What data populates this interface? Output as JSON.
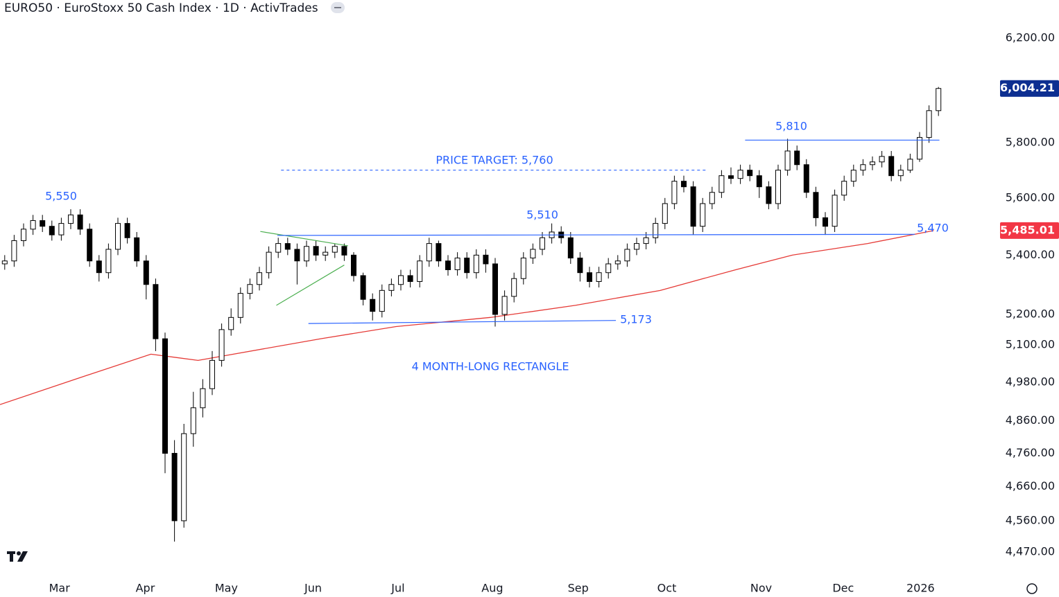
{
  "header": {
    "title": "EURO50 · EuroStoxx 50 Cash Index · 1D · ActivTrades"
  },
  "chart_data": {
    "type": "candlestick",
    "open": [
      5370,
      5380,
      5450,
      5490,
      5520,
      5500,
      5470,
      5510,
      5540,
      5490,
      5380,
      5340,
      5420,
      5510,
      5460,
      5380,
      5300,
      5120,
      4760,
      4560,
      4820,
      4900,
      4960,
      5050,
      5150,
      5190,
      5270,
      5300,
      5340,
      5410,
      5440,
      5420,
      5380,
      5430,
      5400,
      5410,
      5430,
      5400,
      5330,
      5250,
      5210,
      5280,
      5300,
      5330,
      5310,
      5380,
      5440,
      5380,
      5350,
      5390,
      5340,
      5400,
      5370,
      5200,
      5260,
      5320,
      5390,
      5420,
      5460,
      5480,
      5460,
      5390,
      5340,
      5310,
      5340,
      5370,
      5380,
      5420,
      5440,
      5460,
      5510,
      5580,
      5660,
      5640,
      5500,
      5580,
      5620,
      5680,
      5670,
      5700,
      5680,
      5640,
      5580,
      5700,
      5770,
      5720,
      5620,
      5530,
      5500,
      5610,
      5660,
      5700,
      5720,
      5730,
      5750,
      5680,
      5700,
      5740,
      5820,
      5920
    ],
    "high": [
      5400,
      5470,
      5510,
      5540,
      5540,
      5520,
      5530,
      5560,
      5560,
      5510,
      5400,
      5440,
      5530,
      5530,
      5480,
      5400,
      5320,
      5140,
      4800,
      4850,
      4950,
      4990,
      5080,
      5170,
      5220,
      5290,
      5320,
      5360,
      5430,
      5460,
      5460,
      5440,
      5450,
      5450,
      5430,
      5440,
      5440,
      5410,
      5340,
      5270,
      5300,
      5320,
      5350,
      5350,
      5400,
      5460,
      5450,
      5400,
      5410,
      5410,
      5420,
      5420,
      5390,
      5280,
      5340,
      5410,
      5440,
      5480,
      5510,
      5500,
      5480,
      5410,
      5360,
      5360,
      5390,
      5400,
      5440,
      5460,
      5480,
      5530,
      5600,
      5680,
      5680,
      5660,
      5600,
      5640,
      5700,
      5710,
      5720,
      5720,
      5700,
      5660,
      5720,
      5815,
      5790,
      5740,
      5640,
      5550,
      5630,
      5680,
      5720,
      5740,
      5750,
      5770,
      5770,
      5720,
      5760,
      5840,
      5940,
      6010
    ],
    "low": [
      5350,
      5360,
      5430,
      5470,
      5480,
      5450,
      5450,
      5490,
      5470,
      5360,
      5310,
      5320,
      5400,
      5440,
      5360,
      5250,
      5080,
      4700,
      4500,
      4540,
      4780,
      4870,
      4940,
      5030,
      5130,
      5170,
      5250,
      5280,
      5320,
      5390,
      5400,
      5300,
      5360,
      5380,
      5380,
      5390,
      5380,
      5310,
      5230,
      5180,
      5190,
      5260,
      5280,
      5290,
      5290,
      5360,
      5360,
      5330,
      5330,
      5320,
      5320,
      5340,
      5160,
      5180,
      5240,
      5300,
      5370,
      5400,
      5440,
      5440,
      5370,
      5310,
      5290,
      5290,
      5320,
      5350,
      5360,
      5400,
      5420,
      5440,
      5490,
      5560,
      5620,
      5470,
      5480,
      5560,
      5600,
      5650,
      5650,
      5660,
      5600,
      5560,
      5560,
      5680,
      5700,
      5600,
      5500,
      5470,
      5480,
      5590,
      5640,
      5680,
      5700,
      5710,
      5660,
      5660,
      5690,
      5730,
      5800,
      5900
    ],
    "close": [
      5380,
      5450,
      5490,
      5520,
      5500,
      5470,
      5510,
      5540,
      5490,
      5380,
      5340,
      5420,
      5510,
      5460,
      5380,
      5300,
      5120,
      4760,
      4560,
      4820,
      4900,
      4960,
      5050,
      5150,
      5190,
      5270,
      5300,
      5340,
      5410,
      5440,
      5420,
      5380,
      5430,
      5400,
      5410,
      5430,
      5400,
      5330,
      5250,
      5210,
      5280,
      5300,
      5330,
      5310,
      5380,
      5440,
      5380,
      5350,
      5390,
      5340,
      5400,
      5370,
      5200,
      5260,
      5320,
      5390,
      5420,
      5460,
      5480,
      5460,
      5390,
      5340,
      5310,
      5340,
      5370,
      5380,
      5420,
      5440,
      5460,
      5510,
      5580,
      5660,
      5640,
      5500,
      5580,
      5620,
      5680,
      5670,
      5700,
      5680,
      5640,
      5580,
      5700,
      5770,
      5720,
      5620,
      5530,
      5500,
      5610,
      5660,
      5700,
      5720,
      5730,
      5750,
      5680,
      5700,
      5740,
      5820,
      5920,
      6004.21
    ],
    "up_color": "#ffffff",
    "down_color": "#000000",
    "edge_color": "#000000",
    "moving_average": {
      "color": "#e53935",
      "x": [
        0,
        8,
        16,
        21,
        34,
        42,
        52,
        61,
        70,
        78,
        84,
        92,
        99
      ],
      "values": [
        4910,
        4990,
        5070,
        5050,
        5120,
        5160,
        5190,
        5230,
        5280,
        5350,
        5400,
        5440,
        5485.01
      ]
    },
    "lines": [
      {
        "color": "#4caf50",
        "x": [
          27.6,
          36.9
        ],
        "y": [
          5482,
          5432
        ]
      },
      {
        "color": "#4caf50",
        "x": [
          29.3,
          36.5
        ],
        "y": [
          5230,
          5366
        ]
      },
      {
        "color": "#2962ff",
        "x": [
          29.4,
          97
        ],
        "y": [
          5468,
          5472
        ]
      },
      {
        "color": "#2962ff",
        "x": [
          32.7,
          65.3
        ],
        "y": [
          5170,
          5180
        ]
      },
      {
        "color": "#2962ff",
        "x": [
          79,
          99.6
        ],
        "y": [
          5810,
          5810
        ]
      },
      {
        "color": "#2962ff",
        "x": [
          29.8,
          75
        ],
        "y": [
          5700,
          5700
        ],
        "dashed": true
      }
    ],
    "annotations": [
      "5,550",
      "PRICE TARGET: 5,760",
      "5,510",
      "5,810",
      "5,470",
      "5,173",
      "4 MONTH-LONG RECTANGLE"
    ],
    "price_tags": [
      {
        "value": 6004.21,
        "label": "6,004.21",
        "color": "#0d2f91"
      },
      {
        "value": 5485.01,
        "label": "5,485.01",
        "color": "#f23645"
      }
    ],
    "xlim": [
      0,
      105
    ],
    "xticks": [
      {
        "value": 6.3,
        "label": "Mar"
      },
      {
        "value": 15.4,
        "label": "Apr"
      },
      {
        "value": 24,
        "label": "May"
      },
      {
        "value": 33.2,
        "label": "Jun"
      },
      {
        "value": 42.2,
        "label": "Jul"
      },
      {
        "value": 52.2,
        "label": "Aug"
      },
      {
        "value": 61.3,
        "label": "Sep"
      },
      {
        "value": 70.7,
        "label": "Oct"
      },
      {
        "value": 80.7,
        "label": "Nov"
      },
      {
        "value": 89.4,
        "label": "Dec"
      },
      {
        "value": 97.6,
        "label": "2026"
      }
    ],
    "ylim": [
      4396,
      6352
    ],
    "log_scale": true,
    "grid": false,
    "yticks": [
      {
        "value": 6200,
        "label": "6,200.00"
      },
      {
        "value": 5800,
        "label": "5,800.00"
      },
      {
        "value": 5600,
        "label": "5,600.00"
      },
      {
        "value": 5400,
        "label": "5,400.00"
      },
      {
        "value": 5200,
        "label": "5,200.00"
      },
      {
        "value": 5100,
        "label": "5,100.00"
      },
      {
        "value": 4980,
        "label": "4,980.00"
      },
      {
        "value": 4860,
        "label": "4,860.00"
      },
      {
        "value": 4760,
        "label": "4,760.00"
      },
      {
        "value": 4660,
        "label": "4,660.00"
      },
      {
        "value": 4560,
        "label": "4,560.00"
      },
      {
        "value": 4470,
        "label": "4,470.00"
      }
    ]
  }
}
